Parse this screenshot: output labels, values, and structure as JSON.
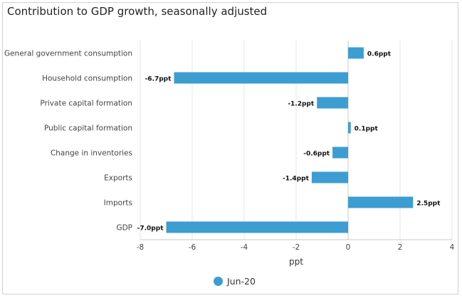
{
  "title": "Contribution to GDP growth, seasonally adjusted",
  "colors": {
    "bar": "#3d9dd1",
    "grid": "#e4e4e4",
    "axis": "#c8c8c8"
  },
  "chart_data": {
    "type": "bar",
    "orientation": "horizontal",
    "categories": [
      "General government consumption",
      "Household consumption",
      "Private capital formation",
      "Public capital formation",
      "Change in inventories",
      "Exports",
      "Imports",
      "GDP"
    ],
    "series": [
      {
        "name": "Jun-20",
        "values": [
          0.6,
          -6.7,
          -1.2,
          0.1,
          -0.6,
          -1.4,
          2.5,
          -7.0
        ],
        "labels": [
          "0.6ppt",
          "-6.7ppt",
          "-1.2ppt",
          "0.1ppt",
          "-0.6ppt",
          "-1.4ppt",
          "2.5ppt",
          "-7.0ppt"
        ]
      }
    ],
    "xlabel": "ppt",
    "xlim": [
      -8,
      4
    ],
    "xticks": [
      -8,
      -6,
      -4,
      -2,
      0,
      2,
      4
    ],
    "grid": true,
    "legend_position": "bottom"
  }
}
